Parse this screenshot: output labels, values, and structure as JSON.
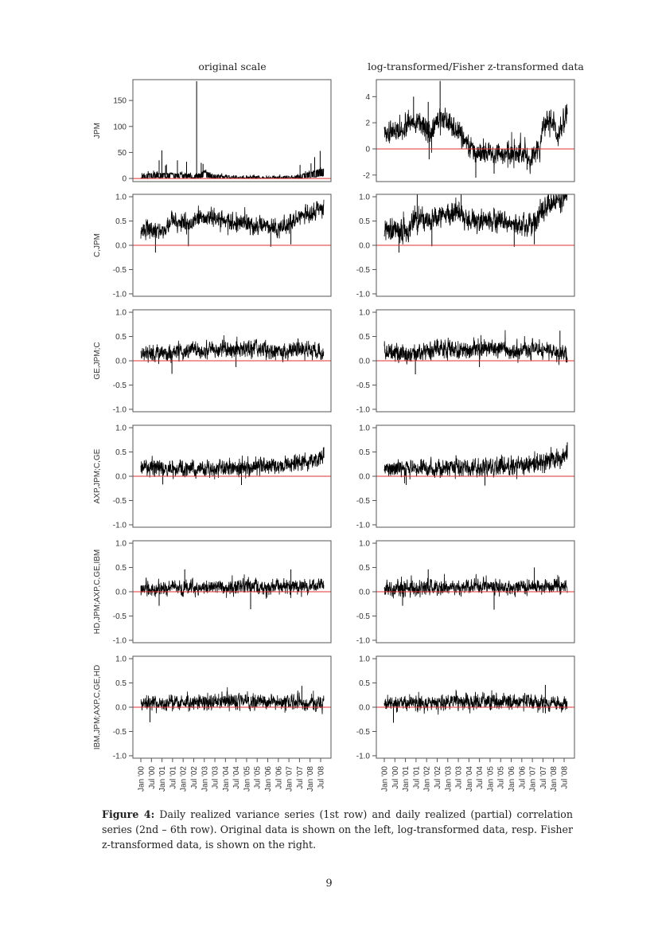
{
  "figure": {
    "column_titles": [
      "original scale",
      "log-transformed/Fisher z-transformed data"
    ],
    "x_tick_labels": [
      "Jan '00",
      "Jul '00",
      "Jan '01",
      "Jul '01",
      "Jan '02",
      "Jul '02",
      "Jan '03",
      "Jul '03",
      "Jan '04",
      "Jul '04",
      "Jan '05",
      "Jul '05",
      "Jan '06",
      "Jul '06",
      "Jan '07",
      "Jul '07",
      "Jan '08",
      "Jul '08"
    ],
    "reference_line_color": "#e03030",
    "series_color": "#000000",
    "axis_color": "#555555"
  },
  "caption": {
    "label": "Figure 4:",
    "text": " Daily realized variance series (1st row) and daily realized (partial) correlation series (2nd – 6th row). Original data is shown on the left, log-transformed data, resp. Fisher z-transformed data, is shown on the right."
  },
  "page_number": "9",
  "chart_data": [
    {
      "type": "line",
      "row": 1,
      "column": "original scale",
      "ylabel": "JPM",
      "yticks": [
        0,
        50,
        100,
        150
      ],
      "ytick_labels": [
        "0",
        "50",
        "100",
        "150"
      ],
      "ylim": [
        -6,
        190
      ],
      "x_range": [
        "Jan '00",
        "Jul '08"
      ],
      "baseline": [
        [
          0,
          5
        ],
        [
          0.08,
          8
        ],
        [
          0.2,
          7
        ],
        [
          0.3,
          6
        ],
        [
          0.35,
          10
        ],
        [
          0.42,
          4
        ],
        [
          0.5,
          1.5
        ],
        [
          0.75,
          1.5
        ],
        [
          0.83,
          2
        ],
        [
          0.88,
          6
        ],
        [
          0.95,
          12
        ],
        [
          1,
          18
        ]
      ],
      "noise": 3,
      "spike_scale": 4,
      "floor": 0,
      "spikes": [
        [
          0.04,
          14
        ],
        [
          0.07,
          15
        ],
        [
          0.1,
          35
        ],
        [
          0.115,
          54
        ],
        [
          0.135,
          25
        ],
        [
          0.14,
          27
        ],
        [
          0.2,
          35
        ],
        [
          0.25,
          32
        ],
        [
          0.305,
          187
        ],
        [
          0.33,
          30
        ],
        [
          0.34,
          28
        ],
        [
          0.37,
          12
        ],
        [
          0.87,
          26
        ],
        [
          0.9,
          14
        ],
        [
          0.92,
          15
        ],
        [
          0.93,
          29
        ],
        [
          0.95,
          41
        ],
        [
          0.98,
          53
        ]
      ],
      "reference_line": 0
    },
    {
      "type": "line",
      "row": 1,
      "column": "log-transformed/Fisher z-transformed data",
      "ylabel": "",
      "yticks": [
        -2,
        0,
        2,
        4
      ],
      "ytick_labels": [
        "-2",
        "0",
        "2",
        "4"
      ],
      "ylim": [
        -2.5,
        5.3
      ],
      "x_range": [
        "Jan '00",
        "Jul '08"
      ],
      "baseline": [
        [
          0,
          1.3
        ],
        [
          0.1,
          1.4
        ],
        [
          0.14,
          2.1
        ],
        [
          0.2,
          2
        ],
        [
          0.25,
          1.3
        ],
        [
          0.3,
          2.5
        ],
        [
          0.33,
          2.3
        ],
        [
          0.4,
          1.3
        ],
        [
          0.45,
          0.6
        ],
        [
          0.5,
          -0.3
        ],
        [
          0.6,
          -0.5
        ],
        [
          0.7,
          -0.2
        ],
        [
          0.8,
          -0.6
        ],
        [
          0.85,
          0.1
        ],
        [
          0.87,
          1.8
        ],
        [
          0.92,
          2.3
        ],
        [
          0.95,
          1.0
        ],
        [
          1,
          2.9
        ]
      ],
      "noise": 0.55,
      "spike_scale": 1.4,
      "spikes": [
        [
          0.305,
          5.2
        ],
        [
          0.24,
          3.6
        ],
        [
          0.16,
          4.0
        ],
        [
          0.245,
          -0.8
        ],
        [
          0.46,
          -0.4
        ],
        [
          0.5,
          -2.2
        ],
        [
          0.6,
          -1.9
        ],
        [
          0.78,
          -1.6
        ]
      ],
      "reference_line": 0
    },
    {
      "type": "line",
      "row": 2,
      "column": "original scale",
      "ylabel": "C,JPM",
      "yticks": [
        -1.0,
        -0.5,
        0.0,
        0.5,
        1.0
      ],
      "ytick_labels": [
        "-1.0",
        "-0.5",
        "0.0",
        "0.5",
        "1.0"
      ],
      "ylim": [
        -1.05,
        1.05
      ],
      "x_range": [
        "Jan '00",
        "Jul '08"
      ],
      "baseline": [
        [
          0,
          0.3
        ],
        [
          0.08,
          0.32
        ],
        [
          0.13,
          0.3
        ],
        [
          0.16,
          0.5
        ],
        [
          0.25,
          0.45
        ],
        [
          0.38,
          0.6
        ],
        [
          0.45,
          0.5
        ],
        [
          0.55,
          0.45
        ],
        [
          0.7,
          0.38
        ],
        [
          0.8,
          0.35
        ],
        [
          0.88,
          0.62
        ],
        [
          0.95,
          0.7
        ],
        [
          1,
          0.75
        ]
      ],
      "noise": 0.12,
      "spike_scale": 0.25,
      "spikes": [
        [
          0.08,
          -0.15
        ],
        [
          0.26,
          -0.02
        ],
        [
          0.71,
          -0.03
        ],
        [
          0.82,
          0.02
        ]
      ],
      "reference_line": 0
    },
    {
      "type": "line",
      "row": 2,
      "column": "log-transformed/Fisher z-transformed data",
      "ylabel": "",
      "yticks": [
        -1.0,
        -0.5,
        0.0,
        0.5,
        1.0
      ],
      "ytick_labels": [
        "-1.0",
        "-0.5",
        "0.0",
        "0.5",
        "1.0"
      ],
      "ylim": [
        -1.05,
        1.05
      ],
      "x_range": [
        "Jan '00",
        "Jul '08"
      ],
      "baseline": [
        [
          0,
          0.3
        ],
        [
          0.08,
          0.33
        ],
        [
          0.13,
          0.3
        ],
        [
          0.16,
          0.55
        ],
        [
          0.25,
          0.5
        ],
        [
          0.38,
          0.7
        ],
        [
          0.45,
          0.55
        ],
        [
          0.55,
          0.5
        ],
        [
          0.7,
          0.42
        ],
        [
          0.8,
          0.38
        ],
        [
          0.88,
          0.8
        ],
        [
          0.95,
          0.9
        ],
        [
          1,
          1.0
        ]
      ],
      "noise": 0.15,
      "spike_scale": 0.3,
      "spikes": [
        [
          0.08,
          -0.15
        ],
        [
          0.26,
          -0.02
        ],
        [
          0.71,
          -0.03
        ],
        [
          0.82,
          0.02
        ],
        [
          0.18,
          1.05
        ],
        [
          0.42,
          1.05
        ]
      ],
      "reference_line": 0,
      "clip_top": 1.05
    },
    {
      "type": "line",
      "row": 3,
      "column": "original scale",
      "ylabel": "GE,JPM;C",
      "yticks": [
        -1.0,
        -0.5,
        0.0,
        0.5,
        1.0
      ],
      "ytick_labels": [
        "-1.0",
        "-0.5",
        "0.0",
        "0.5",
        "1.0"
      ],
      "ylim": [
        -1.05,
        1.05
      ],
      "x_range": [
        "Jan '00",
        "Jul '08"
      ],
      "baseline": [
        [
          0,
          0.18
        ],
        [
          0.15,
          0.15
        ],
        [
          0.3,
          0.25
        ],
        [
          0.5,
          0.22
        ],
        [
          0.65,
          0.25
        ],
        [
          0.72,
          0.18
        ],
        [
          0.85,
          0.22
        ],
        [
          1,
          0.15
        ]
      ],
      "noise": 0.11,
      "spike_scale": 0.22,
      "spikes": [
        [
          0.17,
          -0.27
        ],
        [
          0.52,
          -0.13
        ]
      ],
      "reference_line": 0
    },
    {
      "type": "line",
      "row": 3,
      "column": "log-transformed/Fisher z-transformed data",
      "ylabel": "",
      "yticks": [
        -1.0,
        -0.5,
        0.0,
        0.5,
        1.0
      ],
      "ytick_labels": [
        "-1.0",
        "-0.5",
        "0.0",
        "0.5",
        "1.0"
      ],
      "ylim": [
        -1.05,
        1.05
      ],
      "x_range": [
        "Jan '00",
        "Jul '08"
      ],
      "baseline": [
        [
          0,
          0.18
        ],
        [
          0.15,
          0.15
        ],
        [
          0.3,
          0.25
        ],
        [
          0.5,
          0.22
        ],
        [
          0.65,
          0.26
        ],
        [
          0.72,
          0.18
        ],
        [
          0.85,
          0.23
        ],
        [
          1,
          0.15
        ]
      ],
      "noise": 0.12,
      "spike_scale": 0.24,
      "spikes": [
        [
          0.17,
          -0.28
        ],
        [
          0.52,
          -0.13
        ],
        [
          0.96,
          0.62
        ]
      ],
      "reference_line": 0
    },
    {
      "type": "line",
      "row": 4,
      "column": "original scale",
      "ylabel": "AXP,JPM;C,GE",
      "yticks": [
        -1.0,
        -0.5,
        0.0,
        0.5,
        1.0
      ],
      "ytick_labels": [
        "-1.0",
        "-0.5",
        "0.0",
        "0.5",
        "1.0"
      ],
      "ylim": [
        -1.05,
        1.05
      ],
      "x_range": [
        "Jan '00",
        "Jul '08"
      ],
      "baseline": [
        [
          0,
          0.18
        ],
        [
          0.3,
          0.15
        ],
        [
          0.55,
          0.18
        ],
        [
          0.75,
          0.22
        ],
        [
          0.9,
          0.3
        ],
        [
          1,
          0.38
        ]
      ],
      "noise": 0.11,
      "spike_scale": 0.22,
      "spikes": [
        [
          0.12,
          -0.17
        ],
        [
          0.55,
          -0.18
        ],
        [
          1.0,
          0.6
        ]
      ],
      "reference_line": 0
    },
    {
      "type": "line",
      "row": 4,
      "column": "log-transformed/Fisher z-transformed data",
      "ylabel": "",
      "yticks": [
        -1.0,
        -0.5,
        0.0,
        0.5,
        1.0
      ],
      "ytick_labels": [
        "-1.0",
        "-0.5",
        "0.0",
        "0.5",
        "1.0"
      ],
      "ylim": [
        -1.05,
        1.05
      ],
      "x_range": [
        "Jan '00",
        "Jul '08"
      ],
      "baseline": [
        [
          0,
          0.18
        ],
        [
          0.3,
          0.15
        ],
        [
          0.55,
          0.18
        ],
        [
          0.75,
          0.22
        ],
        [
          0.9,
          0.32
        ],
        [
          1,
          0.4
        ]
      ],
      "noise": 0.12,
      "spike_scale": 0.24,
      "spikes": [
        [
          0.12,
          -0.18
        ],
        [
          0.55,
          -0.19
        ],
        [
          1.0,
          0.7
        ]
      ],
      "reference_line": 0
    },
    {
      "type": "line",
      "row": 5,
      "column": "original scale",
      "ylabel": "HD,JPM;AXP,C,GE,IBM",
      "yticks": [
        -1.0,
        -0.5,
        0.0,
        0.5,
        1.0
      ],
      "ytick_labels": [
        "-1.0",
        "-0.5",
        "0.0",
        "0.5",
        "1.0"
      ],
      "ylim": [
        -1.05,
        1.05
      ],
      "x_range": [
        "Jan '00",
        "Jul '08"
      ],
      "baseline": [
        [
          0,
          0.07
        ],
        [
          0.3,
          0.08
        ],
        [
          0.5,
          0.1
        ],
        [
          0.7,
          0.1
        ],
        [
          1,
          0.12
        ]
      ],
      "noise": 0.1,
      "spike_scale": 0.22,
      "spikes": [
        [
          0.1,
          -0.29
        ],
        [
          0.24,
          0.46
        ],
        [
          0.6,
          -0.36
        ],
        [
          0.82,
          0.46
        ]
      ],
      "reference_line": 0
    },
    {
      "type": "line",
      "row": 5,
      "column": "log-transformed/Fisher z-transformed data",
      "ylabel": "",
      "yticks": [
        -1.0,
        -0.5,
        0.0,
        0.5,
        1.0
      ],
      "ytick_labels": [
        "-1.0",
        "-0.5",
        "0.0",
        "0.5",
        "1.0"
      ],
      "ylim": [
        -1.05,
        1.05
      ],
      "x_range": [
        "Jan '00",
        "Jul '08"
      ],
      "baseline": [
        [
          0,
          0.07
        ],
        [
          0.3,
          0.08
        ],
        [
          0.5,
          0.1
        ],
        [
          0.7,
          0.1
        ],
        [
          1,
          0.12
        ]
      ],
      "noise": 0.1,
      "spike_scale": 0.22,
      "spikes": [
        [
          0.1,
          -0.29
        ],
        [
          0.24,
          0.46
        ],
        [
          0.6,
          -0.37
        ],
        [
          0.82,
          0.5
        ]
      ],
      "reference_line": 0
    },
    {
      "type": "line",
      "row": 6,
      "column": "original scale",
      "ylabel": "IBM,JPM;AXP,C,GE,HD",
      "yticks": [
        -1.0,
        -0.5,
        0.0,
        0.5,
        1.0
      ],
      "ytick_labels": [
        "-1.0",
        "-0.5",
        "0.0",
        "0.5",
        "1.0"
      ],
      "ylim": [
        -1.05,
        1.05
      ],
      "x_range": [
        "Jan '00",
        "Jul '08"
      ],
      "baseline": [
        [
          0,
          0.08
        ],
        [
          0.35,
          0.1
        ],
        [
          0.5,
          0.13
        ],
        [
          0.8,
          0.1
        ],
        [
          1,
          0.05
        ]
      ],
      "noise": 0.1,
      "spike_scale": 0.22,
      "spikes": [
        [
          0.05,
          -0.31
        ],
        [
          0.88,
          0.44
        ]
      ],
      "reference_line": 0
    },
    {
      "type": "line",
      "row": 6,
      "column": "log-transformed/Fisher z-transformed data",
      "ylabel": "",
      "yticks": [
        -1.0,
        -0.5,
        0.0,
        0.5,
        1.0
      ],
      "ytick_labels": [
        "-1.0",
        "-0.5",
        "0.0",
        "0.5",
        "1.0"
      ],
      "ylim": [
        -1.05,
        1.05
      ],
      "x_range": [
        "Jan '00",
        "Jul '08"
      ],
      "baseline": [
        [
          0,
          0.08
        ],
        [
          0.35,
          0.1
        ],
        [
          0.5,
          0.13
        ],
        [
          0.8,
          0.1
        ],
        [
          1,
          0.05
        ]
      ],
      "noise": 0.1,
      "spike_scale": 0.22,
      "spikes": [
        [
          0.05,
          -0.32
        ],
        [
          0.88,
          0.46
        ]
      ],
      "reference_line": 0
    }
  ]
}
